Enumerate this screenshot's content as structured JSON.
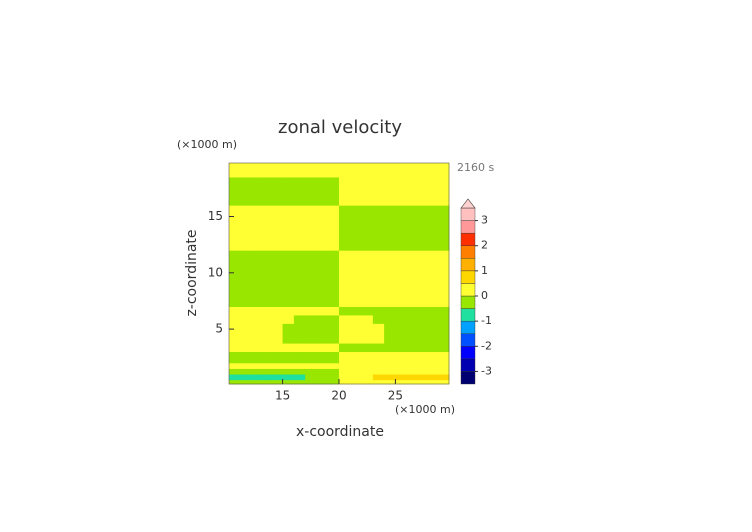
{
  "chart_data": {
    "type": "contour",
    "title": "zonal velocity",
    "time_label": "2160 s",
    "x_label": "x-coordinate",
    "y_label": "z-coordinate",
    "x_unit": "(×1000 m)",
    "y_unit": "(×1000 m)",
    "xlim": [
      10.25,
      29.75
    ],
    "ylim": [
      0.125,
      19.75
    ],
    "xticks": [
      15,
      20,
      25
    ],
    "yticks": [
      5,
      10,
      15
    ],
    "x_edges": [
      10.25,
      11,
      12,
      13,
      14,
      15,
      16,
      17,
      18,
      19,
      20,
      21,
      22,
      23,
      24,
      25,
      26,
      27,
      28,
      29,
      29.75
    ],
    "y_edges": [
      0.125,
      0.5,
      1,
      1.5,
      2,
      3,
      3.75,
      4.5,
      5.5,
      6.25,
      7,
      8,
      9,
      10,
      11,
      12,
      14,
      16,
      18.5,
      19.75
    ],
    "z": [
      [
        -0.25,
        -0.25,
        -0.25,
        -0.25,
        -0.25,
        -0.25,
        -0.25,
        -0.25,
        -0.25,
        -0.25,
        0.25,
        0.25,
        0.25,
        0.25,
        0.25,
        0.25,
        0.25,
        0.25,
        0.25,
        0.25
      ],
      [
        -0.75,
        -0.75,
        -0.75,
        -0.75,
        -0.75,
        -0.75,
        -0.75,
        -0.25,
        -0.25,
        -0.25,
        0.25,
        0.25,
        0.25,
        0.75,
        0.75,
        0.75,
        0.75,
        0.75,
        0.75,
        0.75
      ],
      [
        -0.25,
        -0.25,
        -0.25,
        -0.25,
        -0.25,
        -0.25,
        -0.25,
        -0.25,
        -0.25,
        -0.25,
        0.25,
        0.25,
        0.25,
        0.25,
        0.25,
        0.25,
        0.25,
        0.25,
        0.25,
        0.25
      ],
      [
        0.25,
        0.25,
        0.25,
        0.25,
        0.25,
        0.25,
        0.25,
        0.25,
        0.25,
        0.25,
        0.25,
        0.25,
        0.25,
        0.25,
        0.25,
        0.25,
        0.25,
        0.25,
        0.25,
        0.25
      ],
      [
        -0.25,
        -0.25,
        -0.25,
        -0.25,
        -0.25,
        -0.25,
        -0.25,
        -0.25,
        -0.25,
        -0.25,
        0.25,
        0.25,
        0.25,
        0.25,
        0.25,
        0.25,
        0.25,
        0.25,
        0.25,
        0.25
      ],
      [
        0.25,
        0.25,
        0.25,
        0.25,
        0.25,
        0.25,
        0.25,
        0.25,
        0.25,
        0.25,
        -0.25,
        -0.25,
        -0.25,
        -0.25,
        -0.25,
        -0.25,
        -0.25,
        -0.25,
        -0.25,
        -0.25
      ],
      [
        0.25,
        0.25,
        0.25,
        0.25,
        0.25,
        -0.25,
        -0.25,
        -0.25,
        -0.25,
        -0.25,
        0.25,
        0.25,
        0.25,
        0.25,
        -0.25,
        -0.25,
        -0.25,
        -0.25,
        -0.25,
        -0.25
      ],
      [
        0.25,
        0.25,
        0.25,
        0.25,
        0.25,
        -0.25,
        -0.25,
        -0.25,
        -0.25,
        -0.25,
        0.25,
        0.25,
        0.25,
        0.25,
        -0.25,
        -0.25,
        -0.25,
        -0.25,
        -0.25,
        -0.25
      ],
      [
        0.25,
        0.25,
        0.25,
        0.25,
        0.25,
        0.25,
        -0.25,
        -0.25,
        -0.25,
        -0.25,
        0.25,
        0.25,
        0.25,
        -0.25,
        -0.25,
        -0.25,
        -0.25,
        -0.25,
        -0.25,
        -0.25
      ],
      [
        0.25,
        0.25,
        0.25,
        0.25,
        0.25,
        0.25,
        0.25,
        0.25,
        0.25,
        0.25,
        -0.25,
        -0.25,
        -0.25,
        -0.25,
        -0.25,
        -0.25,
        -0.25,
        -0.25,
        -0.25,
        -0.25
      ],
      [
        -0.25,
        -0.25,
        -0.25,
        -0.25,
        -0.25,
        -0.25,
        -0.25,
        -0.25,
        -0.25,
        -0.25,
        0.25,
        0.25,
        0.25,
        0.25,
        0.25,
        0.25,
        0.25,
        0.25,
        0.25,
        0.25
      ],
      [
        -0.25,
        -0.25,
        -0.25,
        -0.25,
        -0.25,
        -0.25,
        -0.25,
        -0.25,
        -0.25,
        -0.25,
        0.25,
        0.25,
        0.25,
        0.25,
        0.25,
        0.25,
        0.25,
        0.25,
        0.25,
        0.25
      ],
      [
        -0.25,
        -0.25,
        -0.25,
        -0.25,
        -0.25,
        -0.25,
        -0.25,
        -0.25,
        -0.25,
        -0.25,
        0.25,
        0.25,
        0.25,
        0.25,
        0.25,
        0.25,
        0.25,
        0.25,
        0.25,
        0.25
      ],
      [
        -0.25,
        -0.25,
        -0.25,
        -0.25,
        -0.25,
        -0.25,
        -0.25,
        -0.25,
        -0.25,
        -0.25,
        0.25,
        0.25,
        0.25,
        0.25,
        0.25,
        0.25,
        0.25,
        0.25,
        0.25,
        0.25
      ],
      [
        -0.25,
        -0.25,
        -0.25,
        -0.25,
        -0.25,
        -0.25,
        -0.25,
        -0.25,
        -0.25,
        -0.25,
        0.25,
        0.25,
        0.25,
        0.25,
        0.25,
        0.25,
        0.25,
        0.25,
        0.25,
        0.25
      ],
      [
        0.25,
        0.25,
        0.25,
        0.25,
        0.25,
        0.25,
        0.25,
        0.25,
        0.25,
        0.25,
        -0.25,
        -0.25,
        -0.25,
        -0.25,
        -0.25,
        -0.25,
        -0.25,
        -0.25,
        -0.25,
        -0.25
      ],
      [
        0.25,
        0.25,
        0.25,
        0.25,
        0.25,
        0.25,
        0.25,
        0.25,
        0.25,
        0.25,
        -0.25,
        -0.25,
        -0.25,
        -0.25,
        -0.25,
        -0.25,
        -0.25,
        -0.25,
        -0.25,
        -0.25
      ],
      [
        -0.25,
        -0.25,
        -0.25,
        -0.25,
        -0.25,
        -0.25,
        -0.25,
        -0.25,
        -0.25,
        -0.25,
        0.25,
        0.25,
        0.25,
        0.25,
        0.25,
        0.25,
        0.25,
        0.25,
        0.25,
        0.25
      ],
      [
        0.25,
        0.25,
        0.25,
        0.25,
        0.25,
        0.25,
        0.25,
        0.25,
        0.25,
        0.25,
        0.25,
        0.25,
        0.25,
        0.25,
        0.25,
        0.25,
        0.25,
        0.25,
        0.25,
        0.25
      ]
    ],
    "levels": [
      -3.5,
      -3,
      -2.5,
      -2,
      -1.5,
      -1,
      -0.5,
      0,
      0.5,
      1,
      1.5,
      2,
      2.5,
      3,
      3.5
    ],
    "level_colors": [
      "#000070",
      "#0000b0",
      "#0000ff",
      "#0050ff",
      "#00a0ff",
      "#20e0a0",
      "#99e600",
      "#ffff33",
      "#ffd700",
      "#ffb000",
      "#ff8000",
      "#ff3000",
      "#ff9999",
      "#ffc0c0"
    ],
    "extend_color": "#ffd0d0",
    "colorbar_ticks": [
      -3,
      -2,
      -1,
      0,
      1,
      2,
      3
    ]
  }
}
